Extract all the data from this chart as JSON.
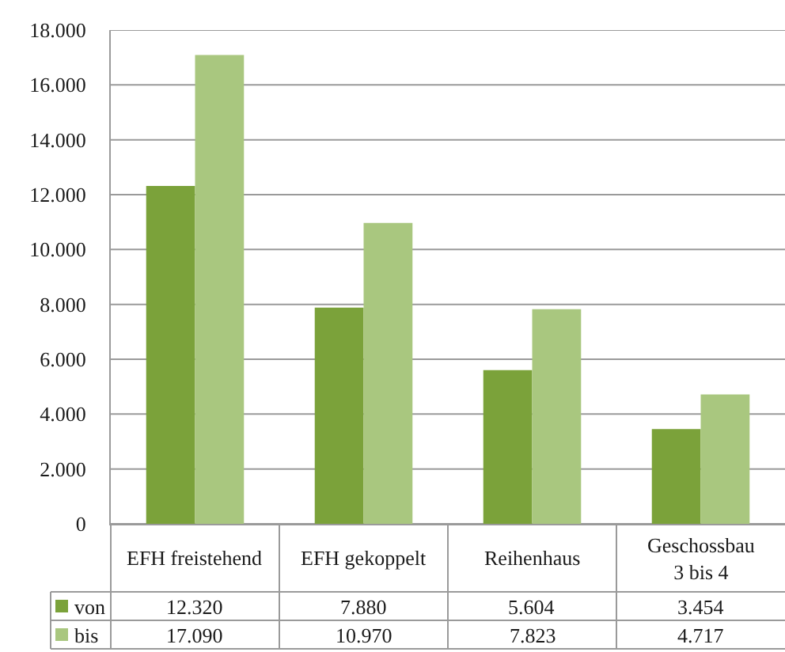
{
  "chart_data": {
    "type": "bar",
    "categories": [
      "EFH freistehend",
      "EFH gekoppelt",
      "Reihenhaus",
      "Geschossbau 3 bis 4"
    ],
    "series": [
      {
        "name": "von",
        "color": "#7ba23a",
        "values": [
          12320,
          7880,
          5604,
          3454
        ],
        "value_labels": [
          "12.320",
          "7.880",
          "5.604",
          "3.454"
        ]
      },
      {
        "name": "bis",
        "color": "#a9c77f",
        "values": [
          17090,
          10970,
          7823,
          4717
        ],
        "value_labels": [
          "17.090",
          "10.970",
          "7.823",
          "4.717"
        ]
      }
    ],
    "ylim": [
      0,
      18000
    ],
    "yticks": [
      0,
      {
        "value": 2000,
        "label": "2.000"
      },
      {
        "value": 4000,
        "label": "4.000"
      },
      {
        "value": 6000,
        "label": "6.000"
      },
      {
        "value": 8000,
        "label": "8.000"
      },
      {
        "value": 10000,
        "label": "10.000"
      },
      {
        "value": 12000,
        "label": "12.000"
      },
      {
        "value": 14000,
        "label": "14.000"
      },
      {
        "value": 16000,
        "label": "16.000"
      },
      {
        "value": 18000,
        "label": "18.000"
      }
    ],
    "grid": "y",
    "legend": "bottom"
  }
}
